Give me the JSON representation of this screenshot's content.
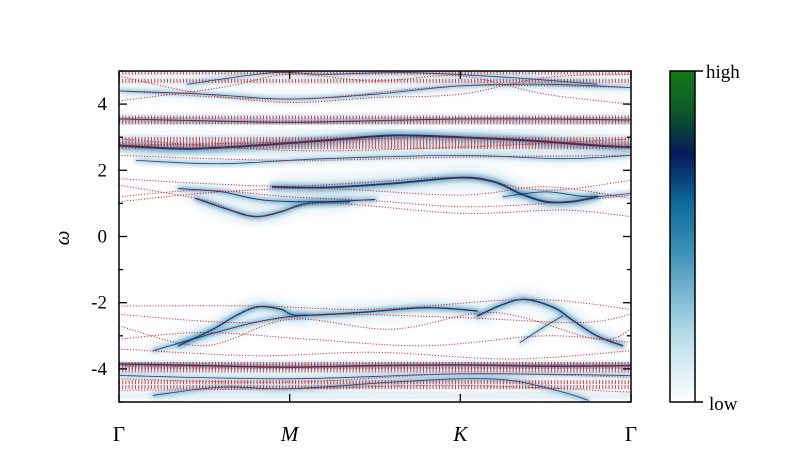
{
  "chart_data": {
    "type": "heatmap",
    "title": "",
    "xlabel": "",
    "ylabel": "ω",
    "ylim": [
      -5,
      5
    ],
    "x_ticks": [
      {
        "pos": 0,
        "label": "Γ",
        "italic": false
      },
      {
        "pos": 1,
        "label": "M",
        "italic": true
      },
      {
        "pos": 2,
        "label": "K",
        "italic": true
      },
      {
        "pos": 3,
        "label": "Γ",
        "italic": false
      }
    ],
    "y_ticks": [
      {
        "value": 4,
        "label": "4"
      },
      {
        "value": 2,
        "label": "2"
      },
      {
        "value": 0,
        "label": "0"
      },
      {
        "value": -2,
        "label": "-2"
      },
      {
        "value": -4,
        "label": "-4"
      }
    ],
    "colorbar": {
      "high_label": "high",
      "low_label": "low",
      "colors": [
        "#ffffff",
        "#b8dcea",
        "#3d92b8",
        "#0c6b9a",
        "#06195a",
        "#0d5a28",
        "#127a18"
      ]
    },
    "band_color": "#1a6f9a",
    "dot_color": "#d01010",
    "spectral_bands": [
      {
        "pts": [
          [
            0,
            3.55
          ],
          [
            0.5,
            3.5
          ],
          [
            1,
            3.45
          ],
          [
            1.5,
            3.5
          ],
          [
            2,
            3.55
          ],
          [
            2.5,
            3.55
          ],
          [
            3,
            3.52
          ]
        ],
        "w": 2.2
      },
      {
        "pts": [
          [
            0,
            2.75
          ],
          [
            0.4,
            2.65
          ],
          [
            0.8,
            2.75
          ],
          [
            1.2,
            2.9
          ],
          [
            1.6,
            3.05
          ],
          [
            2,
            3.0
          ],
          [
            2.4,
            2.9
          ],
          [
            2.8,
            2.75
          ],
          [
            3,
            2.7
          ]
        ],
        "w": 4.5
      },
      {
        "pts": [
          [
            0.1,
            2.3
          ],
          [
            0.6,
            2.2
          ],
          [
            1.2,
            2.35
          ],
          [
            2,
            2.45
          ],
          [
            2.6,
            2.35
          ],
          [
            3,
            2.45
          ]
        ],
        "w": 1.4
      },
      {
        "pts": [
          [
            0,
            4.4
          ],
          [
            0.5,
            4.3
          ],
          [
            1,
            4.15
          ],
          [
            1.5,
            4.3
          ],
          [
            2,
            4.55
          ],
          [
            2.5,
            4.6
          ],
          [
            3,
            4.5
          ]
        ],
        "w": 1.6
      },
      {
        "pts": [
          [
            0.4,
            4.6
          ],
          [
            0.9,
            4.95
          ],
          [
            1.2,
            4.9
          ],
          [
            1.7,
            4.95
          ],
          [
            2.3,
            4.8
          ],
          [
            2.8,
            4.6
          ]
        ],
        "w": 1.2
      },
      {
        "pts": [
          [
            0.45,
            1.15
          ],
          [
            0.65,
            0.8
          ],
          [
            0.8,
            0.6
          ],
          [
            0.95,
            0.75
          ],
          [
            1.1,
            1.0
          ],
          [
            1.35,
            1.05
          ]
        ],
        "w": 3.0
      },
      {
        "pts": [
          [
            0.35,
            1.45
          ],
          [
            0.6,
            1.35
          ],
          [
            0.85,
            1.1
          ],
          [
            1.2,
            1.05
          ],
          [
            1.5,
            1.12
          ]
        ],
        "w": 2.2
      },
      {
        "pts": [
          [
            0.9,
            1.5
          ],
          [
            1.2,
            1.48
          ],
          [
            1.6,
            1.6
          ],
          [
            2,
            1.78
          ],
          [
            2.2,
            1.65
          ],
          [
            2.35,
            1.3
          ],
          [
            2.5,
            1.05
          ],
          [
            2.65,
            1.05
          ],
          [
            2.8,
            1.2
          ]
        ],
        "w": 4.0
      },
      {
        "pts": [
          [
            2.25,
            1.2
          ],
          [
            2.5,
            1.35
          ],
          [
            2.75,
            1.2
          ],
          [
            3,
            1.3
          ]
        ],
        "w": 1.4
      },
      {
        "pts": [
          [
            0.35,
            -3.3
          ],
          [
            0.55,
            -2.8
          ],
          [
            0.7,
            -2.35
          ],
          [
            0.82,
            -2.12
          ],
          [
            0.95,
            -2.2
          ],
          [
            1.05,
            -2.38
          ],
          [
            1.4,
            -2.3
          ],
          [
            1.8,
            -2.15
          ],
          [
            2.1,
            -2.25
          ]
        ],
        "w": 3.0
      },
      {
        "pts": [
          [
            0.2,
            -3.45
          ],
          [
            0.5,
            -3.0
          ],
          [
            0.75,
            -2.65
          ],
          [
            0.95,
            -2.45
          ],
          [
            1.1,
            -2.38
          ]
        ],
        "w": 2.0
      },
      {
        "pts": [
          [
            2.1,
            -2.4
          ],
          [
            2.25,
            -2.05
          ],
          [
            2.38,
            -1.9
          ],
          [
            2.55,
            -2.15
          ],
          [
            2.65,
            -2.5
          ],
          [
            2.8,
            -3.0
          ],
          [
            2.95,
            -3.3
          ]
        ],
        "w": 3.2
      },
      {
        "pts": [
          [
            2.35,
            -3.2
          ],
          [
            2.5,
            -2.7
          ],
          [
            2.6,
            -2.4
          ]
        ],
        "w": 1.4
      },
      {
        "pts": [
          [
            0,
            -3.85
          ],
          [
            0.5,
            -3.9
          ],
          [
            1,
            -3.95
          ],
          [
            1.5,
            -3.9
          ],
          [
            2,
            -3.88
          ],
          [
            2.5,
            -3.92
          ],
          [
            3,
            -3.9
          ]
        ],
        "w": 3.0
      },
      {
        "pts": [
          [
            0.2,
            -4.8
          ],
          [
            0.6,
            -4.55
          ],
          [
            1,
            -4.6
          ],
          [
            1.6,
            -4.4
          ],
          [
            2,
            -4.3
          ],
          [
            2.3,
            -4.35
          ],
          [
            2.6,
            -4.7
          ],
          [
            2.75,
            -4.95
          ]
        ],
        "w": 1.8
      },
      {
        "pts": [
          [
            0,
            -4.2
          ],
          [
            1,
            -4.3
          ],
          [
            2,
            -4.15
          ],
          [
            3,
            -4.2
          ]
        ],
        "w": 1.2
      }
    ],
    "dotted_bands": [
      [
        [
          0,
          3.55
        ],
        [
          1,
          3.45
        ],
        [
          2,
          3.55
        ],
        [
          3,
          3.52
        ]
      ],
      [
        [
          0,
          4.4
        ],
        [
          1,
          4.15
        ],
        [
          2,
          4.55
        ],
        [
          3,
          4.5
        ]
      ],
      [
        [
          0,
          4.1
        ],
        [
          0.6,
          4.5
        ],
        [
          1,
          4.9
        ],
        [
          1.5,
          4.7
        ],
        [
          2,
          4.85
        ],
        [
          2.5,
          4.3
        ],
        [
          3,
          4.0
        ]
      ],
      [
        [
          0,
          4.85
        ],
        [
          0.5,
          4.3
        ],
        [
          1,
          4.05
        ],
        [
          1.5,
          4.2
        ],
        [
          2,
          4.3
        ],
        [
          2.5,
          4.8
        ],
        [
          3,
          4.9
        ]
      ],
      [
        [
          0,
          2.75
        ],
        [
          1,
          2.85
        ],
        [
          2,
          3.0
        ],
        [
          3,
          2.7
        ]
      ],
      [
        [
          0,
          2.95
        ],
        [
          1,
          2.6
        ],
        [
          2,
          2.7
        ],
        [
          3,
          2.95
        ]
      ],
      [
        [
          0,
          2.45
        ],
        [
          1,
          2.3
        ],
        [
          2,
          2.4
        ],
        [
          3,
          2.45
        ]
      ],
      [
        [
          0,
          1.75
        ],
        [
          0.5,
          1.6
        ],
        [
          1,
          1.52
        ],
        [
          1.5,
          1.65
        ],
        [
          2,
          1.78
        ],
        [
          2.5,
          1.4
        ],
        [
          3,
          1.7
        ]
      ],
      [
        [
          0,
          1.2
        ],
        [
          0.5,
          1.4
        ],
        [
          1,
          1.2
        ],
        [
          1.5,
          1.08
        ],
        [
          2,
          0.9
        ],
        [
          2.5,
          1.0
        ],
        [
          3,
          1.25
        ]
      ],
      [
        [
          0,
          1.55
        ],
        [
          0.5,
          1.1
        ],
        [
          0.8,
          0.6
        ],
        [
          1.2,
          1.0
        ],
        [
          2,
          0.7
        ],
        [
          2.6,
          0.8
        ],
        [
          3,
          0.6
        ]
      ],
      [
        [
          0,
          1.05
        ],
        [
          0.6,
          1.35
        ],
        [
          1.2,
          1.45
        ],
        [
          2,
          1.25
        ],
        [
          2.5,
          1.5
        ],
        [
          3,
          1.15
        ]
      ],
      [
        [
          0,
          -2.1
        ],
        [
          0.8,
          -2.1
        ],
        [
          1.5,
          -2.2
        ],
        [
          2.4,
          -1.9
        ],
        [
          3,
          -2.2
        ]
      ],
      [
        [
          0,
          -2.35
        ],
        [
          0.7,
          -2.6
        ],
        [
          1.2,
          -2.35
        ],
        [
          2,
          -2.45
        ],
        [
          2.7,
          -2.6
        ],
        [
          3,
          -2.35
        ]
      ],
      [
        [
          0,
          -2.7
        ],
        [
          0.5,
          -3.3
        ],
        [
          1,
          -2.5
        ],
        [
          1.6,
          -2.8
        ],
        [
          2.2,
          -2.3
        ],
        [
          2.8,
          -3.1
        ],
        [
          3,
          -2.8
        ]
      ],
      [
        [
          0,
          -3.1
        ],
        [
          0.5,
          -2.9
        ],
        [
          1.1,
          -3.1
        ],
        [
          1.8,
          -3.3
        ],
        [
          2.5,
          -3.0
        ],
        [
          3,
          -3.2
        ]
      ],
      [
        [
          0,
          -3.4
        ],
        [
          0.8,
          -3.6
        ],
        [
          1.5,
          -3.5
        ],
        [
          2.3,
          -3.7
        ],
        [
          3,
          -3.45
        ]
      ],
      [
        [
          0,
          -3.9
        ],
        [
          1,
          -3.95
        ],
        [
          2,
          -3.88
        ],
        [
          3,
          -3.9
        ]
      ],
      [
        [
          0,
          -4.3
        ],
        [
          1,
          -4.4
        ],
        [
          2,
          -4.15
        ],
        [
          3,
          -4.25
        ]
      ],
      [
        [
          0,
          -4.65
        ],
        [
          1,
          -4.6
        ],
        [
          2,
          -4.5
        ],
        [
          3,
          -4.7
        ]
      ]
    ],
    "dense_levels": [
      4.95,
      4.7,
      3.62,
      3.48,
      2.95,
      2.85,
      2.75,
      2.65,
      -3.85,
      -3.95,
      -4.05,
      -4.5,
      -4.8
    ],
    "horizontal_dotted_levels": [
      4.95,
      4.7,
      3.6,
      3.45,
      2.95,
      2.82,
      2.7,
      -3.85,
      -3.95,
      -4.05,
      -4.4,
      -4.55
    ]
  }
}
